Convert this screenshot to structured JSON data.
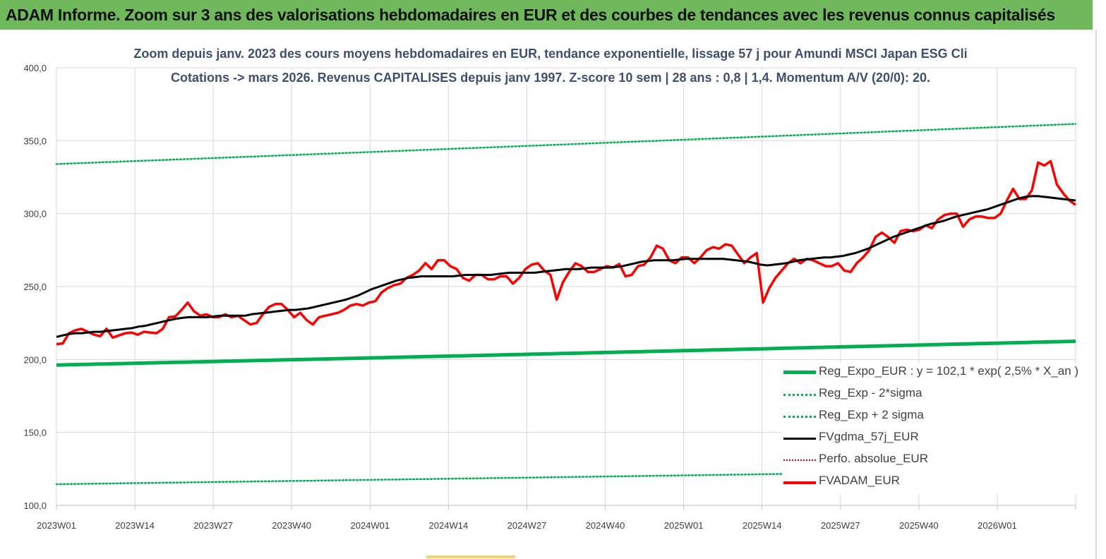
{
  "banner": {
    "title": "ADAM Informe. Zoom sur 3 ans des valorisations hebdomadaires en EUR et des courbes de tendances avec les revenus connus capitalisés"
  },
  "colors": {
    "banner_bg": "#70b85c",
    "reg_expo": "#00b050",
    "sigma_lines": "#00b050",
    "fvgdma": "#000000",
    "perfo": "#c00000",
    "fvadam": "#ff0000",
    "grid": "#d9d9d9"
  },
  "chart_data": {
    "type": "line",
    "title": "Zoom depuis janv. 2023 des cours moyens hebdomadaires en EUR, tendance exponentielle, lissage 57 j pour Amundi MSCI Japan ESG Cli",
    "subtitle": "Cotations -> mars 2026. Revenus CAPITALISES depuis janv 1997. Z-score 10 sem | 28 ans : 0,8 | 1,4. Momentum A/V (20/0): 20.",
    "xlabel": "",
    "ylabel": "",
    "ylim": [
      100,
      400
    ],
    "grid": true,
    "legend_position": "bottom-right",
    "y_ticks": [
      "100,0",
      "150,0",
      "200,0",
      "250,0",
      "300,0",
      "350,0",
      "400,0"
    ],
    "x_ticks": [
      "2023W01",
      "2023W14",
      "2023W27",
      "2023W40",
      "2024W01",
      "2024W14",
      "2024W27",
      "2024W40",
      "2025W01",
      "2025W14",
      "2025W27",
      "2025W40",
      "2026W01"
    ],
    "x_week_range": [
      0,
      169
    ],
    "series": [
      {
        "name": "Reg_Expo_EUR : y = 102,1 * exp( 2,5% *  X_an )",
        "style": "solid-thick",
        "color": "#00b050",
        "start": 196.2,
        "end": 212.5
      },
      {
        "name": "Reg_Exp - 2*sigma",
        "style": "dotted",
        "color": "#00b050",
        "start": 114.5,
        "end": 124.5
      },
      {
        "name": "Reg_Exp + 2 sigma",
        "style": "dotted",
        "color": "#00b050",
        "start": 334.0,
        "end": 361.5
      },
      {
        "name": "FVgdma_57j_EUR",
        "style": "solid",
        "color": "#000000",
        "values": [
          215.5,
          216.5,
          217.5,
          218,
          218,
          218.5,
          219,
          219,
          219.5,
          220,
          220.5,
          221,
          221.5,
          222.5,
          223,
          224,
          225,
          226,
          227,
          228,
          228.5,
          229,
          229,
          229,
          229,
          229.5,
          230,
          230,
          230,
          230,
          230,
          231,
          231.5,
          232,
          232.5,
          233,
          233.5,
          234,
          234,
          234.5,
          235,
          236,
          237,
          238,
          239,
          240,
          241,
          242.5,
          244,
          246,
          248,
          249.5,
          251,
          252.5,
          254,
          255,
          256,
          256.5,
          257,
          257,
          257,
          257,
          257,
          257,
          257.5,
          258,
          258,
          258,
          258,
          258,
          258.5,
          259,
          259.5,
          259.5,
          259.5,
          259.5,
          259.5,
          260,
          260.5,
          261,
          261.5,
          262,
          262,
          262,
          262.5,
          263,
          263,
          263,
          263,
          263.5,
          264,
          265,
          266,
          267,
          267.5,
          268,
          268,
          268,
          268,
          268.5,
          269,
          269,
          269,
          269,
          269,
          269,
          269,
          268.5,
          268,
          267.5,
          267,
          266,
          265,
          264.5,
          265,
          265.5,
          266,
          267,
          268,
          268.5,
          269,
          269.5,
          270,
          270,
          270.5,
          271,
          272,
          273,
          274.5,
          276,
          278,
          280,
          282,
          284,
          285.5,
          287,
          288.5,
          290,
          291.5,
          293,
          294,
          295,
          296.5,
          298,
          299,
          300,
          301,
          302,
          303,
          304.5,
          306,
          307.5,
          309,
          310.5,
          311.5,
          312,
          312,
          311.5,
          311,
          310.5,
          310,
          309.5,
          309
        ]
      },
      {
        "name": "Perfo. absolue_EUR",
        "style": "dotted",
        "color": "#c00000",
        "values": []
      },
      {
        "name": "FVADAM_EUR",
        "style": "solid-thick",
        "color": "#ff0000",
        "values": [
          210.5,
          211,
          218,
          220,
          221,
          219,
          217,
          216,
          221,
          215,
          216.5,
          218,
          218.5,
          217,
          219,
          218.5,
          218,
          221,
          229,
          229.5,
          234,
          239,
          233,
          230,
          231,
          229,
          229,
          231,
          229,
          230,
          227,
          224,
          225,
          231,
          236,
          238,
          238,
          234,
          229,
          232,
          227,
          224,
          229,
          230,
          231,
          232,
          234,
          237,
          238,
          237,
          239,
          240,
          246,
          249,
          251,
          252,
          256,
          258,
          261,
          266,
          262,
          268,
          268,
          264,
          262,
          256,
          254,
          258,
          258,
          255,
          255,
          257,
          257,
          252,
          256,
          262,
          265,
          266,
          261,
          258,
          241,
          253,
          260,
          266,
          264,
          260,
          260,
          262,
          264,
          263,
          265.5,
          257,
          258,
          264,
          265,
          270,
          278,
          276,
          268,
          266,
          270,
          270,
          266,
          270,
          275,
          277,
          276,
          279,
          278,
          272,
          266,
          270,
          273,
          239,
          249,
          256,
          261,
          266,
          269,
          266,
          269,
          268,
          266,
          264,
          264,
          266,
          261,
          260,
          266,
          270,
          275,
          284,
          287,
          284,
          280,
          288,
          289,
          288,
          289,
          292,
          290,
          296,
          299,
          300,
          300,
          291,
          296,
          298,
          298,
          297,
          297,
          300,
          309,
          317,
          310,
          310,
          316,
          335,
          333,
          336,
          320,
          314,
          309,
          306
        ]
      }
    ]
  }
}
